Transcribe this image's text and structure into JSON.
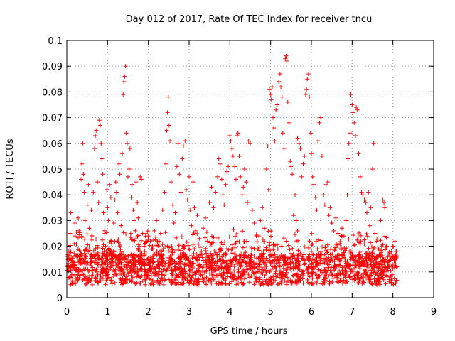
{
  "chart_data": {
    "type": "scatter",
    "title": "Day 012 of 2017, Rate Of TEC Index for receiver tncu",
    "xlabel": "GPS time / hours",
    "ylabel": "ROTI / TECUs",
    "xlim": [
      0,
      9
    ],
    "ylim": [
      0,
      0.1
    ],
    "xticks": [
      "0",
      "1",
      "2",
      "3",
      "4",
      "5",
      "6",
      "7",
      "8",
      "9"
    ],
    "yticks": [
      "0",
      "0.01",
      "0.02",
      "0.03",
      "0.04",
      "0.05",
      "0.06",
      "0.07",
      "0.08",
      "0.09",
      "0.1"
    ],
    "grid": true,
    "marker": "plus",
    "series": [
      {
        "color": "#ff0000",
        "points": [
          [
            0.02,
            0.012
          ],
          [
            0.05,
            0.018
          ],
          [
            0.08,
            0.025
          ],
          [
            0.1,
            0.033
          ],
          [
            0.12,
            0.009
          ],
          [
            0.15,
            0.014
          ],
          [
            0.18,
            0.021
          ],
          [
            0.2,
            0.029
          ],
          [
            0.23,
            0.011
          ],
          [
            0.25,
            0.016
          ],
          [
            0.28,
            0.031
          ],
          [
            0.3,
            0.026
          ],
          [
            0.32,
            0.013
          ],
          [
            0.35,
            0.046
          ],
          [
            0.37,
            0.052
          ],
          [
            0.39,
            0.06
          ],
          [
            0.41,
            0.048
          ],
          [
            0.43,
            0.041
          ],
          [
            0.45,
            0.03
          ],
          [
            0.48,
            0.019
          ],
          [
            0.5,
            0.036
          ],
          [
            0.53,
            0.044
          ],
          [
            0.55,
            0.027
          ],
          [
            0.58,
            0.015
          ],
          [
            0.6,
            0.034
          ],
          [
            0.62,
            0.024
          ],
          [
            0.65,
            0.041
          ],
          [
            0.68,
            0.058
          ],
          [
            0.7,
            0.063
          ],
          [
            0.72,
            0.065
          ],
          [
            0.75,
            0.045
          ],
          [
            0.78,
            0.037
          ],
          [
            0.8,
            0.069
          ],
          [
            0.82,
            0.067
          ],
          [
            0.84,
            0.06
          ],
          [
            0.86,
            0.054
          ],
          [
            0.88,
            0.048
          ],
          [
            0.9,
            0.033
          ],
          [
            0.93,
            0.026
          ],
          [
            0.95,
            0.02
          ],
          [
            0.98,
            0.042
          ],
          [
            1.0,
            0.035
          ],
          [
            1.02,
            0.03
          ],
          [
            1.05,
            0.044
          ],
          [
            1.08,
            0.039
          ],
          [
            1.1,
            0.022
          ],
          [
            1.12,
            0.017
          ],
          [
            1.15,
            0.029
          ],
          [
            1.18,
            0.038
          ],
          [
            1.2,
            0.045
          ],
          [
            1.22,
            0.041
          ],
          [
            1.25,
            0.033
          ],
          [
            1.28,
            0.052
          ],
          [
            1.3,
            0.048
          ],
          [
            1.33,
            0.028
          ],
          [
            1.36,
            0.056
          ],
          [
            1.38,
            0.079
          ],
          [
            1.4,
            0.084
          ],
          [
            1.42,
            0.086
          ],
          [
            1.44,
            0.09
          ],
          [
            1.46,
            0.064
          ],
          [
            1.48,
            0.06
          ],
          [
            1.5,
            0.047
          ],
          [
            1.53,
            0.05
          ],
          [
            1.55,
            0.058
          ],
          [
            1.58,
            0.039
          ],
          [
            1.6,
            0.044
          ],
          [
            1.63,
            0.034
          ],
          [
            1.65,
            0.03
          ],
          [
            1.68,
            0.026
          ],
          [
            1.7,
            0.045
          ],
          [
            1.73,
            0.037
          ],
          [
            1.75,
            0.031
          ],
          [
            1.78,
            0.02
          ],
          [
            1.8,
            0.047
          ],
          [
            1.83,
            0.046
          ],
          [
            1.86,
            0.025
          ],
          [
            1.9,
            0.02
          ],
          [
            1.95,
            0.017
          ],
          [
            2.0,
            0.024
          ],
          [
            2.05,
            0.022
          ],
          [
            2.1,
            0.019
          ],
          [
            2.15,
            0.026
          ],
          [
            2.2,
            0.03
          ],
          [
            2.25,
            0.014
          ],
          [
            2.3,
            0.025
          ],
          [
            2.35,
            0.034
          ],
          [
            2.4,
            0.041
          ],
          [
            2.43,
            0.052
          ],
          [
            2.45,
            0.065
          ],
          [
            2.47,
            0.072
          ],
          [
            2.49,
            0.078
          ],
          [
            2.51,
            0.067
          ],
          [
            2.53,
            0.061
          ],
          [
            2.56,
            0.045
          ],
          [
            2.6,
            0.036
          ],
          [
            2.63,
            0.029
          ],
          [
            2.66,
            0.033
          ],
          [
            2.7,
            0.051
          ],
          [
            2.73,
            0.06
          ],
          [
            2.76,
            0.048
          ],
          [
            2.8,
            0.041
          ],
          [
            2.83,
            0.054
          ],
          [
            2.86,
            0.059
          ],
          [
            2.9,
            0.061
          ],
          [
            2.93,
            0.042
          ],
          [
            2.96,
            0.038
          ],
          [
            3.0,
            0.047
          ],
          [
            3.03,
            0.034
          ],
          [
            3.06,
            0.028
          ],
          [
            3.1,
            0.045
          ],
          [
            3.13,
            0.035
          ],
          [
            3.16,
            0.026
          ],
          [
            3.2,
            0.032
          ],
          [
            3.25,
            0.023
          ],
          [
            3.3,
            0.018
          ],
          [
            3.35,
            0.027
          ],
          [
            3.4,
            0.031
          ],
          [
            3.45,
            0.022
          ],
          [
            3.5,
            0.037
          ],
          [
            3.55,
            0.043
          ],
          [
            3.6,
            0.035
          ],
          [
            3.65,
            0.041
          ],
          [
            3.7,
            0.047
          ],
          [
            3.73,
            0.054
          ],
          [
            3.76,
            0.052
          ],
          [
            3.8,
            0.046
          ],
          [
            3.83,
            0.04
          ],
          [
            3.86,
            0.036
          ],
          [
            3.9,
            0.044
          ],
          [
            3.93,
            0.049
          ],
          [
            3.96,
            0.051
          ],
          [
            4.0,
            0.063
          ],
          [
            4.02,
            0.061
          ],
          [
            4.05,
            0.058
          ],
          [
            4.08,
            0.055
          ],
          [
            4.12,
            0.051
          ],
          [
            4.15,
            0.046
          ],
          [
            4.18,
            0.063
          ],
          [
            4.2,
            0.064
          ],
          [
            4.23,
            0.055
          ],
          [
            4.26,
            0.047
          ],
          [
            4.3,
            0.04
          ],
          [
            4.33,
            0.043
          ],
          [
            4.36,
            0.05
          ],
          [
            4.4,
            0.045
          ],
          [
            4.43,
            0.037
          ],
          [
            4.46,
            0.061
          ],
          [
            4.5,
            0.06
          ],
          [
            4.55,
            0.034
          ],
          [
            4.6,
            0.029
          ],
          [
            4.65,
            0.024
          ],
          [
            4.7,
            0.019
          ],
          [
            4.75,
            0.03
          ],
          [
            4.8,
            0.035
          ],
          [
            4.85,
            0.027
          ],
          [
            4.9,
            0.05
          ],
          [
            4.93,
            0.059
          ],
          [
            4.95,
            0.042
          ],
          [
            4.97,
            0.081
          ],
          [
            5.0,
            0.079
          ],
          [
            5.02,
            0.077
          ],
          [
            5.04,
            0.082
          ],
          [
            5.06,
            0.07
          ],
          [
            5.08,
            0.066
          ],
          [
            5.1,
            0.061
          ],
          [
            5.13,
            0.073
          ],
          [
            5.16,
            0.075
          ],
          [
            5.2,
            0.084
          ],
          [
            5.23,
            0.087
          ],
          [
            5.25,
            0.082
          ],
          [
            5.28,
            0.078
          ],
          [
            5.3,
            0.064
          ],
          [
            5.33,
            0.058
          ],
          [
            5.36,
            0.093
          ],
          [
            5.38,
            0.094
          ],
          [
            5.4,
            0.092
          ],
          [
            5.42,
            0.076
          ],
          [
            5.45,
            0.068
          ],
          [
            5.48,
            0.053
          ],
          [
            5.5,
            0.051
          ],
          [
            5.53,
            0.048
          ],
          [
            5.56,
            0.032
          ],
          [
            5.6,
            0.04
          ],
          [
            5.63,
            0.03
          ],
          [
            5.66,
            0.062
          ],
          [
            5.7,
            0.06
          ],
          [
            5.73,
            0.058
          ],
          [
            5.76,
            0.047
          ],
          [
            5.8,
            0.052
          ],
          [
            5.83,
            0.055
          ],
          [
            5.86,
            0.079
          ],
          [
            5.88,
            0.081
          ],
          [
            5.9,
            0.085
          ],
          [
            5.93,
            0.087
          ],
          [
            5.95,
            0.078
          ],
          [
            5.98,
            0.064
          ],
          [
            6.0,
            0.056
          ],
          [
            6.03,
            0.047
          ],
          [
            6.06,
            0.044
          ],
          [
            6.1,
            0.039
          ],
          [
            6.13,
            0.034
          ],
          [
            6.16,
            0.061
          ],
          [
            6.2,
            0.068
          ],
          [
            6.23,
            0.07
          ],
          [
            6.26,
            0.055
          ],
          [
            6.3,
            0.04
          ],
          [
            6.33,
            0.036
          ],
          [
            6.36,
            0.044
          ],
          [
            6.4,
            0.045
          ],
          [
            6.43,
            0.032
          ],
          [
            6.46,
            0.035
          ],
          [
            6.5,
            0.029
          ],
          [
            6.55,
            0.026
          ],
          [
            6.6,
            0.031
          ],
          [
            6.65,
            0.025
          ],
          [
            6.7,
            0.021
          ],
          [
            6.75,
            0.027
          ],
          [
            6.8,
            0.024
          ],
          [
            6.85,
            0.03
          ],
          [
            6.88,
            0.04
          ],
          [
            6.9,
            0.054
          ],
          [
            6.92,
            0.06
          ],
          [
            6.95,
            0.064
          ],
          [
            6.97,
            0.079
          ],
          [
            7.0,
            0.075
          ],
          [
            7.02,
            0.072
          ],
          [
            7.05,
            0.068
          ],
          [
            7.08,
            0.063
          ],
          [
            7.1,
            0.074
          ],
          [
            7.13,
            0.073
          ],
          [
            7.16,
            0.056
          ],
          [
            7.2,
            0.047
          ],
          [
            7.23,
            0.041
          ],
          [
            7.26,
            0.04
          ],
          [
            7.3,
            0.038
          ],
          [
            7.33,
            0.037
          ],
          [
            7.36,
            0.033
          ],
          [
            7.4,
            0.041
          ],
          [
            7.43,
            0.028
          ],
          [
            7.46,
            0.035
          ],
          [
            7.5,
            0.05
          ],
          [
            7.53,
            0.06
          ],
          [
            7.56,
            0.025
          ],
          [
            7.6,
            0.022
          ],
          [
            7.65,
            0.019
          ],
          [
            7.7,
            0.03
          ],
          [
            7.75,
            0.038
          ],
          [
            7.78,
            0.037
          ],
          [
            7.8,
            0.035
          ],
          [
            7.85,
            0.02
          ],
          [
            7.9,
            0.017
          ],
          [
            7.95,
            0.015
          ],
          [
            8.0,
            0.02
          ],
          [
            8.05,
            0.022
          ],
          [
            8.08,
            0.018
          ],
          [
            8.1,
            0.012
          ]
        ]
      }
    ]
  }
}
